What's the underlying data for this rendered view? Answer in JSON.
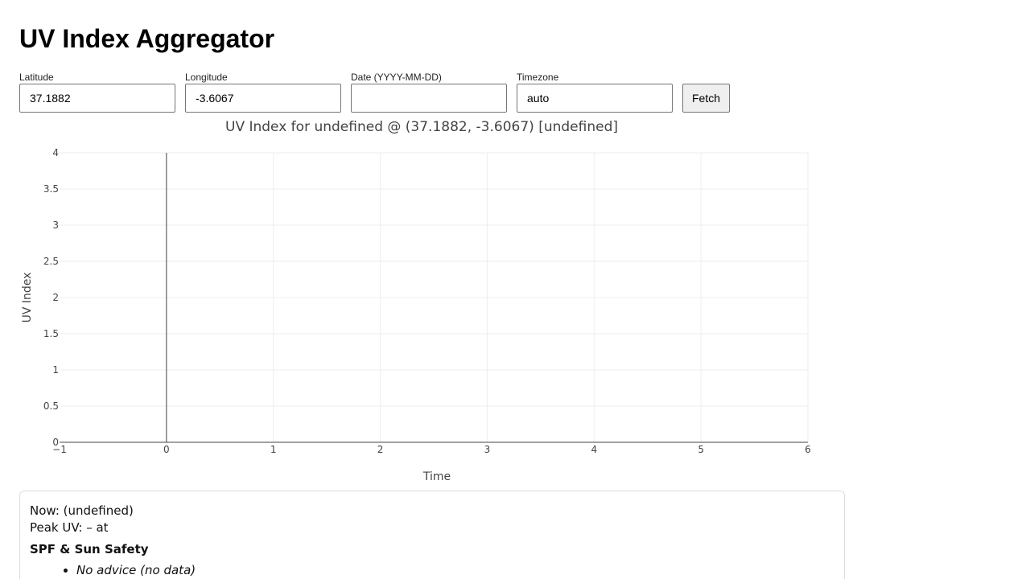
{
  "app": {
    "title": "UV Index Aggregator"
  },
  "form": {
    "latitude": {
      "label": "Latitude",
      "value": "37.1882"
    },
    "longitude": {
      "label": "Longitude",
      "value": "-3.6067"
    },
    "date": {
      "label": "Date (YYYY-MM-DD)",
      "value": ""
    },
    "timezone": {
      "label": "Timezone",
      "value": "auto"
    },
    "fetch_label": "Fetch"
  },
  "chart_data": {
    "type": "line",
    "title": "UV Index for undefined @ (37.1882, -3.6067) [undefined]",
    "xlabel": "Time",
    "ylabel": "UV Index",
    "xlim": [
      -1,
      6
    ],
    "ylim": [
      0,
      4
    ],
    "x_ticks": [
      "−1",
      "0",
      "1",
      "2",
      "3",
      "4",
      "5",
      "6"
    ],
    "x_tick_values": [
      -1,
      0,
      1,
      2,
      3,
      4,
      5,
      6
    ],
    "y_ticks": [
      "0",
      "0.5",
      "1",
      "1.5",
      "2",
      "2.5",
      "3",
      "3.5",
      "4"
    ],
    "y_tick_values": [
      0,
      0.5,
      1,
      1.5,
      2,
      2.5,
      3,
      3.5,
      4
    ],
    "grid": true,
    "series": []
  },
  "info": {
    "now": "Now: (undefined)",
    "peak": "Peak UV: – at",
    "safety_title": "SPF & Sun Safety",
    "advice": [
      "No advice (no data)"
    ]
  },
  "colors": {
    "grid": "#eeeeee",
    "axis": "#444444",
    "tick_text": "#444444"
  }
}
